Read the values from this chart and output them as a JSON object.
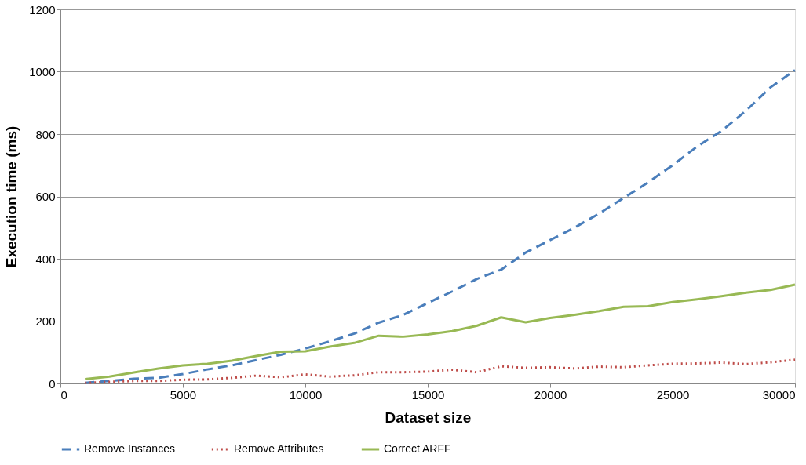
{
  "chart_data": {
    "type": "line",
    "xlabel": "Dataset size",
    "ylabel": "Execution time (ms)",
    "x": [
      1000,
      2000,
      3000,
      4000,
      5000,
      6000,
      7000,
      8000,
      9000,
      10000,
      11000,
      12000,
      13000,
      14000,
      15000,
      16000,
      17000,
      18000,
      19000,
      20000,
      21000,
      22000,
      23000,
      24000,
      25000,
      26000,
      27000,
      28000,
      29000,
      30000
    ],
    "series": [
      {
        "name": "Remove Instances",
        "color": "#4a7ebb",
        "line_style": "dashed",
        "values": [
          2,
          8,
          15,
          18,
          30,
          45,
          58,
          75,
          92,
          112,
          135,
          160,
          195,
          220,
          258,
          295,
          335,
          365,
          420,
          460,
          500,
          545,
          595,
          645,
          700,
          760,
          810,
          875,
          950,
          1005
        ]
      },
      {
        "name": "Remove Attributes",
        "color": "#be4b48",
        "line_style": "dotted",
        "values": [
          2,
          5,
          8,
          8,
          12,
          13,
          18,
          25,
          20,
          29,
          22,
          26,
          36,
          36,
          38,
          44,
          36,
          55,
          50,
          52,
          48,
          54,
          52,
          58,
          63,
          64,
          67,
          62,
          68,
          76
        ]
      },
      {
        "name": "Correct ARFF",
        "color": "#98b954",
        "line_style": "solid",
        "values": [
          14,
          22,
          35,
          48,
          58,
          63,
          73,
          88,
          102,
          103,
          118,
          130,
          153,
          150,
          157,
          168,
          185,
          212,
          196,
          210,
          220,
          232,
          246,
          248,
          261,
          270,
          280,
          291,
          300,
          317
        ]
      }
    ],
    "xlim": [
      0,
      30000
    ],
    "xticks": [
      0,
      5000,
      10000,
      15000,
      20000,
      25000,
      30000
    ],
    "ylim": [
      0,
      1200
    ],
    "yticks": [
      0,
      200,
      400,
      600,
      800,
      1000,
      1200
    ],
    "grid": "y",
    "legend": "bottom",
    "marker": "none"
  }
}
